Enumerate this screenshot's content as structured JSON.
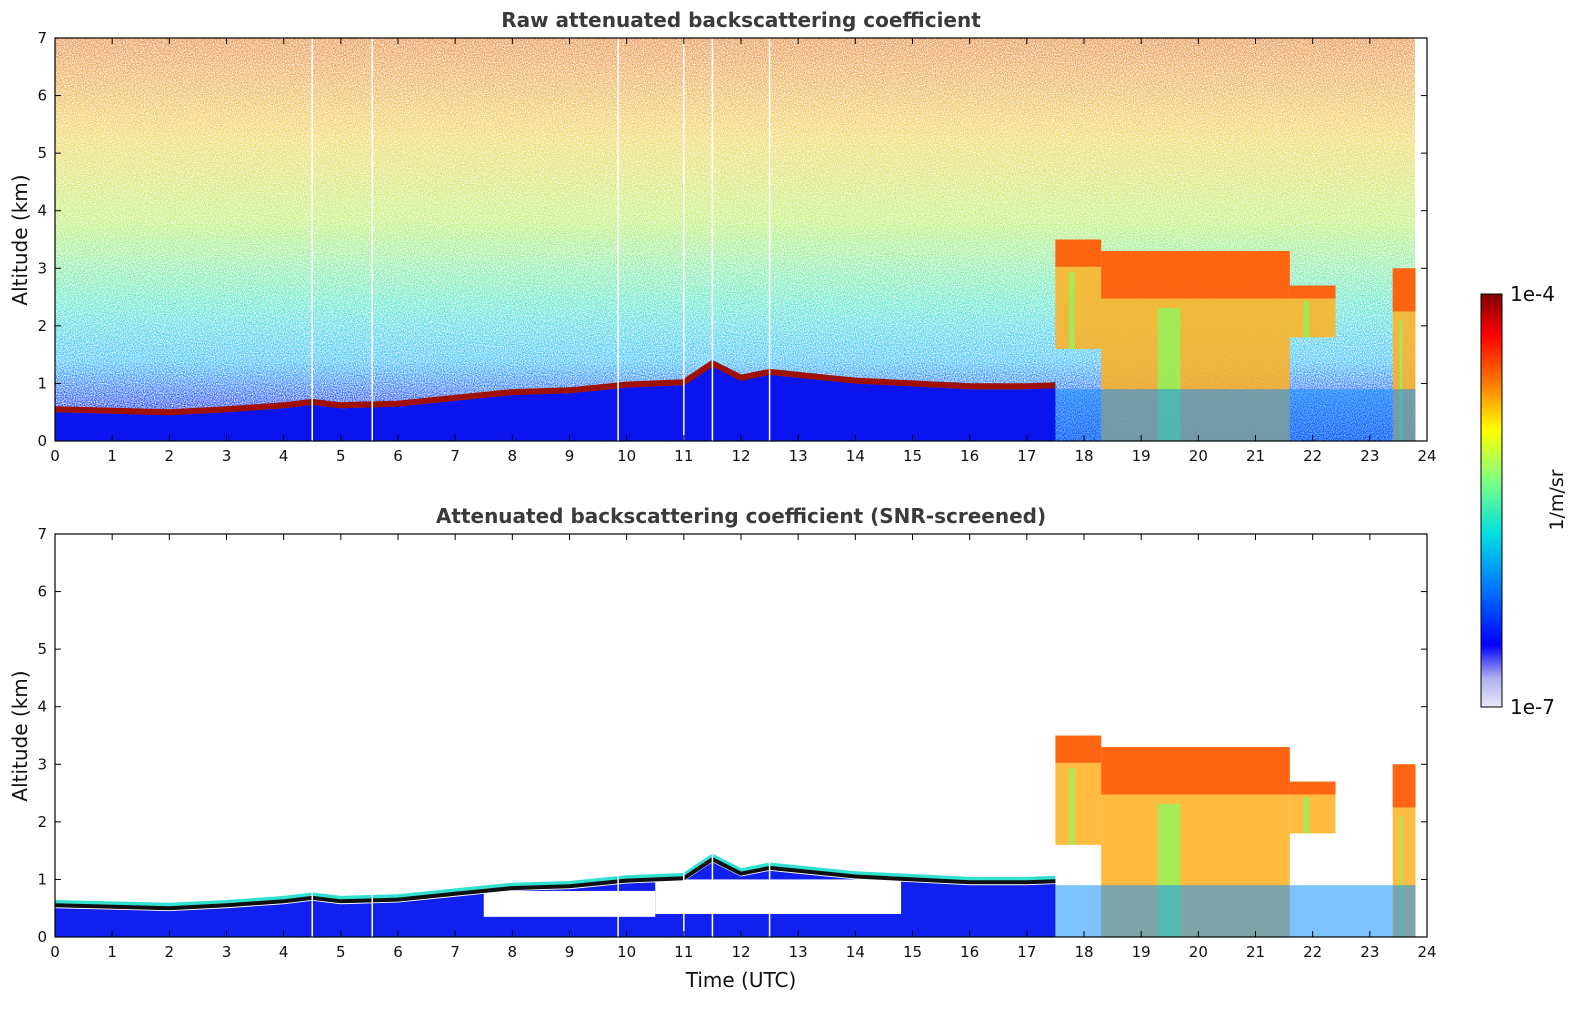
{
  "chart_data": [
    {
      "type": "heatmap",
      "title": "Raw attenuated backscattering coefficient",
      "xlabel": "",
      "ylabel": "Altitude (km)",
      "xlim": [
        0,
        24
      ],
      "ylim": [
        0,
        7
      ],
      "x_ticks": [
        "0",
        "1",
        "2",
        "3",
        "4",
        "5",
        "6",
        "7",
        "8",
        "9",
        "10",
        "11",
        "12",
        "13",
        "14",
        "15",
        "16",
        "17",
        "18",
        "19",
        "20",
        "21",
        "22",
        "23",
        "24"
      ],
      "y_ticks": [
        "0",
        "1",
        "2",
        "3",
        "4",
        "5",
        "6",
        "7"
      ],
      "data_gaps_utc": [
        4.5,
        5.55,
        9.85,
        11.0,
        11.5,
        12.5
      ],
      "data_end_utc": 23.8,
      "boundary_layer_top_km": {
        "x": [
          0,
          2,
          3,
          4,
          4.5,
          5,
          6,
          7,
          8,
          9,
          10,
          11,
          11.5,
          12,
          12.5,
          13,
          14,
          15,
          16,
          17,
          17.5
        ],
        "y": [
          0.55,
          0.5,
          0.55,
          0.62,
          0.68,
          0.62,
          0.65,
          0.75,
          0.85,
          0.88,
          0.98,
          1.02,
          1.35,
          1.1,
          1.2,
          1.15,
          1.05,
          1.0,
          0.95,
          0.95,
          0.97
        ]
      },
      "cloud_layers": [
        {
          "x": [
            17.5,
            18.3
          ],
          "bottom_km": 1.6,
          "top_km": 3.5
        },
        {
          "x": [
            18.3,
            21.6
          ],
          "bottom_km": 0.0,
          "top_km": 3.3
        },
        {
          "x": [
            21.6,
            22.4
          ],
          "bottom_km": 1.8,
          "top_km": 2.7
        },
        {
          "x": [
            23.4,
            23.8
          ],
          "bottom_km": 0.0,
          "top_km": 3.0
        }
      ]
    },
    {
      "type": "heatmap",
      "title": "Attenuated backscattering coefficient (SNR-screened)",
      "xlabel": "Time (UTC)",
      "ylabel": "Altitude (km)",
      "xlim": [
        0,
        24
      ],
      "ylim": [
        0,
        7
      ],
      "x_ticks": [
        "0",
        "1",
        "2",
        "3",
        "4",
        "5",
        "6",
        "7",
        "8",
        "9",
        "10",
        "11",
        "12",
        "13",
        "14",
        "15",
        "16",
        "17",
        "18",
        "19",
        "20",
        "21",
        "22",
        "23",
        "24"
      ],
      "y_ticks": [
        "0",
        "1",
        "2",
        "3",
        "4",
        "5",
        "6",
        "7"
      ],
      "screened_out_above_layer": true
    }
  ],
  "colorbar": {
    "min_label": "1e-7",
    "max_label": "1e-4",
    "unit": "1/m/sr",
    "colormap": [
      "#e8e8f8",
      "#b0b0f0",
      "#0000ff",
      "#0080ff",
      "#00e0e0",
      "#80ff80",
      "#ffff00",
      "#ff8000",
      "#ff0000",
      "#800000"
    ]
  }
}
